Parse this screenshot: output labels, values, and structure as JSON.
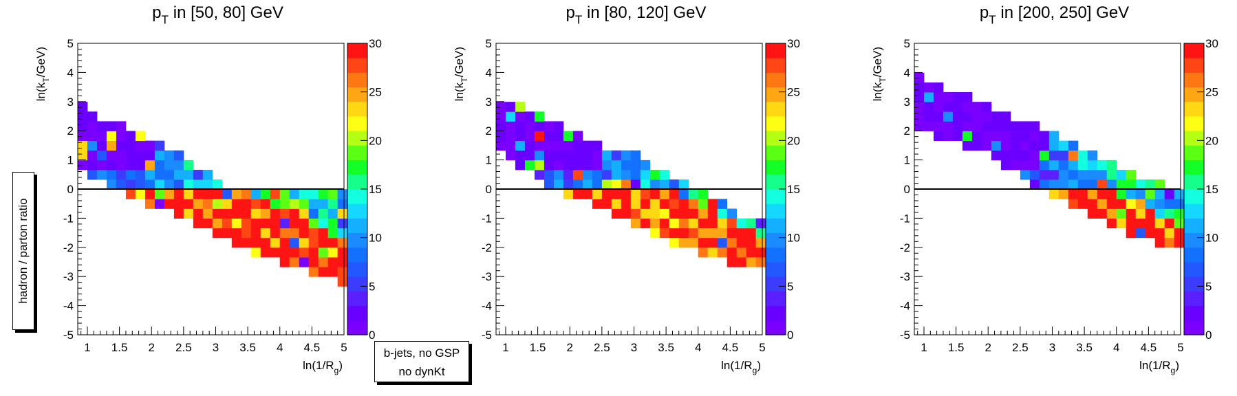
{
  "figure": {
    "side_label": "hadron / parton ratio",
    "legend_lines": [
      "b-jets, no GSP",
      "no dynKt"
    ]
  },
  "colors": {
    "palette": [
      "#7a00ff",
      "#6a00ff",
      "#5a20ff",
      "#3c3cff",
      "#2458ff",
      "#1470ff",
      "#1a8cff",
      "#14b0ff",
      "#14d8ff",
      "#14ffe0",
      "#14ff8c",
      "#14ff28",
      "#5aff14",
      "#b4ff14",
      "#ffff14",
      "#ffd814",
      "#ffa614",
      "#ff7814",
      "#ff4614",
      "#ff1414"
    ],
    "axis": "#000000",
    "zero_line": "#000000"
  },
  "chart_data": [
    {
      "type": "heatmap",
      "title": "p_T in [50, 80] GeV",
      "xlabel": "ln(1/R_g)",
      "ylabel": "ln(k_T/GeV)",
      "xlim": [
        0.85,
        5.0
      ],
      "ylim": [
        -5,
        5
      ],
      "zlim": [
        0,
        30
      ],
      "x_ticks": [
        "1",
        "1.5",
        "2",
        "2.5",
        "3",
        "3.5",
        "4",
        "4.5",
        "5"
      ],
      "y_ticks": [
        "5",
        "4",
        "3",
        "2",
        "1",
        "0",
        "-1",
        "-2",
        "-3",
        "-4",
        "-5"
      ],
      "z_ticks": [
        "30",
        "25",
        "20",
        "15",
        "10",
        "5",
        "0"
      ],
      "bin_width_x": 0.15,
      "bin_width_y": 0.333,
      "upper_edge": [
        [
          0.85,
          3.0
        ],
        [
          1.0,
          2.7
        ],
        [
          1.3,
          2.4
        ],
        [
          1.6,
          2.2
        ],
        [
          2.0,
          1.7
        ],
        [
          2.4,
          1.2
        ],
        [
          2.8,
          0.7
        ],
        [
          3.2,
          0.0
        ],
        [
          3.6,
          -0.1
        ]
      ],
      "lower_edge": [
        [
          0.85,
          1.0
        ],
        [
          1.0,
          0.6
        ],
        [
          1.3,
          0.1
        ],
        [
          1.6,
          -0.2
        ],
        [
          2.0,
          -0.6
        ],
        [
          2.5,
          -1.0
        ],
        [
          3.0,
          -1.6
        ],
        [
          3.5,
          -2.1
        ],
        [
          4.0,
          -2.5
        ],
        [
          4.5,
          -2.9
        ],
        [
          5.0,
          -3.3
        ]
      ],
      "band_edge": [
        [
          3.4,
          0.0
        ],
        [
          3.8,
          -0.4
        ],
        [
          4.2,
          -0.8
        ],
        [
          4.6,
          -1.3
        ],
        [
          5.0,
          -1.6
        ]
      ],
      "transition_x": 2.0,
      "seed": 11
    },
    {
      "type": "heatmap",
      "title": "p_T in [80, 120] GeV",
      "xlabel": "ln(1/R_g)",
      "ylabel": "ln(k_T/GeV)",
      "xlim": [
        0.85,
        5.0
      ],
      "ylim": [
        -5,
        5
      ],
      "zlim": [
        0,
        30
      ],
      "x_ticks": [
        "1",
        "1.5",
        "2",
        "2.5",
        "3",
        "3.5",
        "4",
        "4.5",
        "5"
      ],
      "y_ticks": [
        "5",
        "4",
        "3",
        "2",
        "1",
        "0",
        "-1",
        "-2",
        "-3",
        "-4",
        "-5"
      ],
      "z_ticks": [
        "30",
        "25",
        "20",
        "15",
        "10",
        "5",
        "0"
      ],
      "bin_width_x": 0.15,
      "bin_width_y": 0.333,
      "upper_edge": [
        [
          0.85,
          3.2
        ],
        [
          1.0,
          3.0
        ],
        [
          1.3,
          2.8
        ],
        [
          1.7,
          2.4
        ],
        [
          2.1,
          2.0
        ],
        [
          2.5,
          1.5
        ],
        [
          3.0,
          1.2
        ],
        [
          3.4,
          0.6
        ],
        [
          3.8,
          0.2
        ],
        [
          4.2,
          -0.2
        ],
        [
          4.6,
          -0.8
        ],
        [
          5.0,
          -1.1
        ]
      ],
      "lower_edge": [
        [
          0.85,
          1.3
        ],
        [
          1.1,
          0.9
        ],
        [
          1.4,
          0.6
        ],
        [
          1.7,
          0.1
        ],
        [
          2.0,
          -0.2
        ],
        [
          2.5,
          -0.7
        ],
        [
          3.0,
          -1.3
        ],
        [
          3.5,
          -1.8
        ],
        [
          4.0,
          -2.2
        ],
        [
          4.5,
          -2.5
        ],
        [
          5.0,
          -2.8
        ]
      ],
      "band_edge": [
        [
          3.5,
          0.0
        ],
        [
          3.9,
          -0.4
        ],
        [
          4.3,
          -0.8
        ],
        [
          4.7,
          -1.4
        ],
        [
          5.0,
          -1.6
        ]
      ],
      "transition_x": 2.5,
      "seed": 23
    },
    {
      "type": "heatmap",
      "title": "p_T in [200, 250] GeV",
      "xlabel": "ln(1/R_g)",
      "ylabel": "ln(k_T/GeV)",
      "xlim": [
        0.85,
        5.0
      ],
      "ylim": [
        -5,
        5
      ],
      "zlim": [
        0,
        30
      ],
      "x_ticks": [
        "1",
        "1.5",
        "2",
        "2.5",
        "3",
        "3.5",
        "4",
        "4.5",
        "5"
      ],
      "y_ticks": [
        "5",
        "4",
        "3",
        "2",
        "1",
        "0",
        "-1",
        "-2",
        "-3",
        "-4",
        "-5"
      ],
      "z_ticks": [
        "30",
        "25",
        "20",
        "15",
        "10",
        "5",
        "0"
      ],
      "bin_width_x": 0.15,
      "bin_width_y": 0.333,
      "upper_edge": [
        [
          0.85,
          4.0
        ],
        [
          1.0,
          3.9
        ],
        [
          1.3,
          3.5
        ],
        [
          1.7,
          3.2
        ],
        [
          2.1,
          2.8
        ],
        [
          2.5,
          2.4
        ],
        [
          3.0,
          2.0
        ],
        [
          3.4,
          1.5
        ],
        [
          3.8,
          1.0
        ],
        [
          4.2,
          0.6
        ],
        [
          4.6,
          0.3
        ],
        [
          5.0,
          -0.2
        ]
      ],
      "lower_edge": [
        [
          0.85,
          2.2
        ],
        [
          1.1,
          1.9
        ],
        [
          1.5,
          1.6
        ],
        [
          2.0,
          1.2
        ],
        [
          2.4,
          0.6
        ],
        [
          2.8,
          0.0
        ],
        [
          3.2,
          -0.4
        ],
        [
          3.6,
          -0.9
        ],
        [
          4.0,
          -1.4
        ],
        [
          4.5,
          -1.7
        ],
        [
          5.0,
          -2.1
        ]
      ],
      "band_edge": [
        [
          4.0,
          -0.1
        ],
        [
          4.5,
          -0.6
        ],
        [
          5.0,
          -1.3
        ]
      ],
      "transition_x": 3.0,
      "seed": 37
    }
  ]
}
